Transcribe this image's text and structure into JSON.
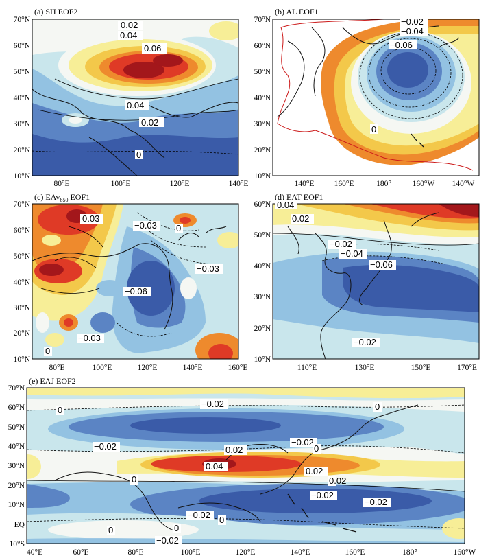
{
  "figure_panels": [
    {
      "id": "a",
      "title": "(a)  SH EOF2",
      "lat_ticks": [
        "70°N",
        "60°N",
        "50°N",
        "40°N",
        "30°N",
        "20°N",
        "10°N"
      ],
      "lon_ticks": [
        "80°E",
        "100°E",
        "120°E",
        "140°E"
      ],
      "contour_labels": [
        "0.02",
        "0.04",
        "0.06",
        "0.04",
        "0.02",
        "0"
      ]
    },
    {
      "id": "b",
      "title": "(b)  AL EOF1",
      "lat_ticks": [
        "70°N",
        "60°N",
        "50°N",
        "40°N",
        "30°N",
        "20°N",
        "10°N"
      ],
      "lon_ticks": [
        "140°E",
        "160°E",
        "180°",
        "160°W",
        "140°W"
      ],
      "contour_labels": [
        "−0.02",
        "−0.04",
        "−0.06",
        "0"
      ]
    },
    {
      "id": "c",
      "title_main": "(c)  EAv",
      "title_sub": "850",
      "title_tail": " EOF1",
      "lat_ticks": [
        "70°N",
        "60°N",
        "50°N",
        "40°N",
        "30°N",
        "20°N",
        "10°N"
      ],
      "lon_ticks": [
        "80°E",
        "100°E",
        "120°E",
        "140°E",
        "160°E"
      ],
      "contour_labels": [
        "−0.03",
        "0",
        "0.03",
        "−0.03",
        "−0.06",
        "−0.03",
        "0"
      ]
    },
    {
      "id": "d",
      "title": "(d)  EAT EOF1",
      "lat_ticks": [
        "60°N",
        "50°N",
        "40°N",
        "30°N",
        "20°N",
        "10°N"
      ],
      "lon_ticks": [
        "110°E",
        "130°E",
        "150°E",
        "170°E"
      ],
      "contour_labels": [
        "0.04",
        "0.02",
        "−0.02",
        "−0.04",
        "−0.06",
        "−0.02"
      ]
    },
    {
      "id": "e",
      "title": "(e)  EAJ EOF2",
      "lat_ticks": [
        "70°N",
        "60°N",
        "50°N",
        "40°N",
        "30°N",
        "20°N",
        "10°N",
        "EQ",
        "10°S"
      ],
      "lon_ticks": [
        "40°E",
        "60°E",
        "80°E",
        "100°E",
        "120°E",
        "140°E",
        "160°E",
        "180°",
        "160°W"
      ],
      "contour_labels": [
        "−0.02",
        "0",
        "0",
        "−0.02",
        "−0.02",
        "0",
        "0.02",
        "0.02",
        "0.04",
        "0.02",
        "0",
        "0",
        "−0.02",
        "−0.02",
        "−0.02",
        "0",
        "0",
        "−0.02"
      ]
    }
  ],
  "colors": {
    "neg3": "#3a5ba8",
    "neg2": "#5b84c4",
    "neg1": "#93c2e2",
    "neg0": "#c9e6ec",
    "zero": "#f5f7f3",
    "pos0": "#f7ee97",
    "pos1": "#f3c84a",
    "pos2": "#ee8a2d",
    "pos3": "#df3a26",
    "pos4": "#a3171b"
  }
}
